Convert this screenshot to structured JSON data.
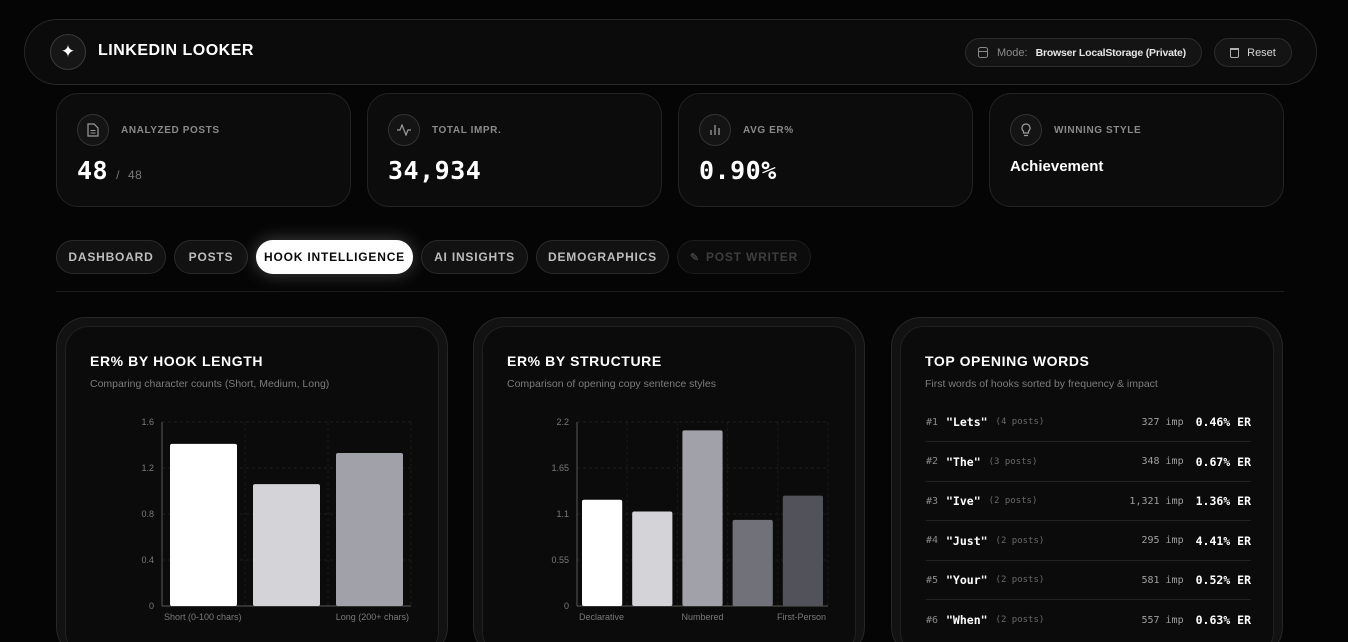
{
  "app": {
    "title": "LINKEDIN LOOKER",
    "logo_icon": "sparkle-icon"
  },
  "header": {
    "mode_label": "Mode:",
    "mode_value": "Browser LocalStorage (Private)",
    "reset_label": "Reset"
  },
  "stats": [
    {
      "label": "ANALYZED POSTS",
      "value": "48",
      "sub": "48",
      "icon": "document-icon"
    },
    {
      "label": "TOTAL IMPR.",
      "value": "34,934",
      "icon": "activity-icon"
    },
    {
      "label": "AVG ER%",
      "value": "0.90%",
      "icon": "bar-chart-icon"
    },
    {
      "label": "WINNING STYLE",
      "value": "Achievement",
      "icon": "lightbulb-icon"
    }
  ],
  "tabs": [
    {
      "label": "DASHBOARD",
      "state": "default"
    },
    {
      "label": "POSTS",
      "state": "default"
    },
    {
      "label": "HOOK INTELLIGENCE",
      "state": "active"
    },
    {
      "label": "AI INSIGHTS",
      "state": "default"
    },
    {
      "label": "DEMOGRAPHICS",
      "state": "default"
    },
    {
      "label": "POST WRITER",
      "state": "disabled"
    }
  ],
  "panels": {
    "hook_length": {
      "title": "ER% BY HOOK LENGTH",
      "subtitle": "Comparing character counts (Short, Medium, Long)"
    },
    "structure": {
      "title": "ER% BY STRUCTURE",
      "subtitle": "Comparison of opening copy sentence styles"
    },
    "opening_words": {
      "title": "TOP OPENING WORDS",
      "subtitle": "First words of hooks sorted by frequency & impact",
      "rows": [
        {
          "rank": "#1",
          "word": "\"Lets\"",
          "posts": "(4 posts)",
          "imp": "327 imp",
          "er": "0.46% ER"
        },
        {
          "rank": "#2",
          "word": "\"The\"",
          "posts": "(3 posts)",
          "imp": "348 imp",
          "er": "0.67% ER"
        },
        {
          "rank": "#3",
          "word": "\"Ive\"",
          "posts": "(2 posts)",
          "imp": "1,321 imp",
          "er": "1.36% ER"
        },
        {
          "rank": "#4",
          "word": "\"Just\"",
          "posts": "(2 posts)",
          "imp": "295 imp",
          "er": "4.41% ER"
        },
        {
          "rank": "#5",
          "word": "\"Your\"",
          "posts": "(2 posts)",
          "imp": "581 imp",
          "er": "0.52% ER"
        },
        {
          "rank": "#6",
          "word": "\"When\"",
          "posts": "(2 posts)",
          "imp": "557 imp",
          "er": "0.63% ER"
        }
      ]
    }
  },
  "chart_data": [
    {
      "type": "bar",
      "title": "ER% BY HOOK LENGTH",
      "categories": [
        "Short (0-100 chars)",
        "",
        "Long (200+ chars)"
      ],
      "values": [
        1.41,
        1.06,
        1.33
      ],
      "colors": [
        "#ffffff",
        "#d4d4d8",
        "#a1a1aa"
      ],
      "yticks": [
        "0",
        "0.4",
        "0.8",
        "1.2",
        "1.6"
      ],
      "ylim": [
        0,
        1.6
      ],
      "grid": true
    },
    {
      "type": "bar",
      "title": "ER% BY STRUCTURE",
      "categories": [
        "Declarative",
        "",
        "Numbered",
        "",
        "First-Person"
      ],
      "values": [
        1.27,
        1.13,
        2.1,
        1.03,
        1.32
      ],
      "colors": [
        "#ffffff",
        "#d4d4d8",
        "#a1a1aa",
        "#71717a",
        "#52525b"
      ],
      "yticks": [
        "0",
        "0.55",
        "1.1",
        "1.65",
        "2.2"
      ],
      "ylim": [
        0,
        2.2
      ],
      "grid": true
    }
  ]
}
